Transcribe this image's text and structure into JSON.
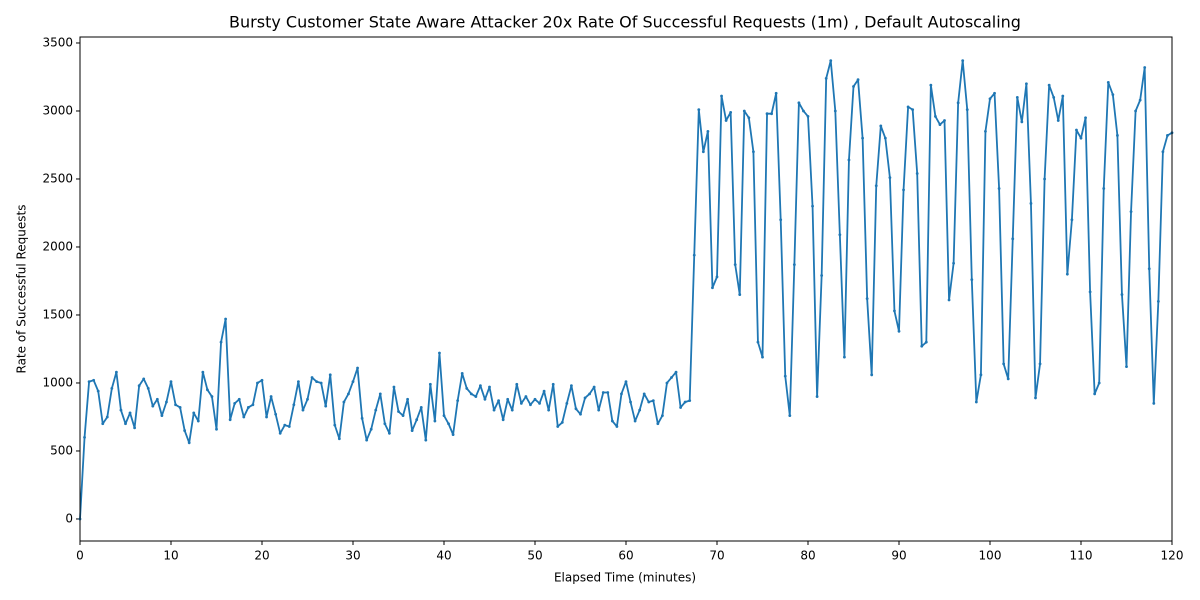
{
  "chart_data": {
    "type": "line",
    "title": "Bursty Customer State Aware Attacker 20x Rate Of Successful Requests (1m) , Default Autoscaling",
    "xlabel": "Elapsed Time (minutes)",
    "ylabel": "Rate of Successful Requests",
    "color": "#1f77b4",
    "markers": true,
    "grid": false,
    "xlim": [
      0,
      120
    ],
    "ylim": [
      -162,
      3544
    ],
    "xticks": [
      0,
      10,
      20,
      30,
      40,
      50,
      60,
      70,
      80,
      90,
      100,
      110,
      120
    ],
    "yticks": [
      0,
      500,
      1000,
      1500,
      2000,
      2500,
      3000,
      3500
    ],
    "x": [
      0,
      0.5,
      1,
      1.5,
      2,
      2.5,
      3,
      3.5,
      4,
      4.5,
      5,
      5.5,
      6,
      6.5,
      7,
      7.5,
      8,
      8.5,
      9,
      9.5,
      10,
      10.5,
      11,
      11.5,
      12,
      12.5,
      13,
      13.5,
      14,
      14.5,
      15,
      15.5,
      16,
      16.5,
      17,
      17.5,
      18,
      18.5,
      19,
      19.5,
      20,
      20.5,
      21,
      21.5,
      22,
      22.5,
      23,
      23.5,
      24,
      24.5,
      25,
      25.5,
      26,
      26.5,
      27,
      27.5,
      28,
      28.5,
      29,
      29.5,
      30,
      30.5,
      31,
      31.5,
      32,
      32.5,
      33,
      33.5,
      34,
      34.5,
      35,
      35.5,
      36,
      36.5,
      37,
      37.5,
      38,
      38.5,
      39,
      39.5,
      40,
      40.5,
      41,
      41.5,
      42,
      42.5,
      43,
      43.5,
      44,
      44.5,
      45,
      45.5,
      46,
      46.5,
      47,
      47.5,
      48,
      48.5,
      49,
      49.5,
      50,
      50.5,
      51,
      51.5,
      52,
      52.5,
      53,
      53.5,
      54,
      54.5,
      55,
      55.5,
      56,
      56.5,
      57,
      57.5,
      58,
      58.5,
      59,
      59.5,
      60,
      60.5,
      61,
      61.5,
      62,
      62.5,
      63,
      63.5,
      64,
      64.5,
      65,
      65.5,
      66,
      66.5,
      67,
      67.5,
      68,
      68.5,
      69,
      69.5,
      70,
      70.5,
      71,
      71.5,
      72,
      72.5,
      73,
      73.5,
      74,
      74.5,
      75,
      75.5,
      76,
      76.5,
      77,
      77.5,
      78,
      78.5,
      79,
      79.5,
      80,
      80.5,
      81,
      81.5,
      82,
      82.5,
      83,
      83.5,
      84,
      84.5,
      85,
      85.5,
      86,
      86.5,
      87,
      87.5,
      88,
      88.5,
      89,
      89.5,
      90,
      90.5,
      91,
      91.5,
      92,
      92.5,
      93,
      93.5,
      94,
      94.5,
      95,
      95.5,
      96,
      96.5,
      97,
      97.5,
      98,
      98.5,
      99,
      99.5,
      100,
      100.5,
      101,
      101.5,
      102,
      102.5,
      103,
      103.5,
      104,
      104.5,
      105,
      105.5,
      106,
      106.5,
      107,
      107.5,
      108,
      108.5,
      109,
      109.5,
      110,
      110.5,
      111,
      111.5,
      112,
      112.5,
      113,
      113.5,
      114,
      114.5,
      115,
      115.5,
      116,
      116.5,
      117,
      117.5,
      118,
      118.5,
      119,
      119.5,
      120
    ],
    "values": [
      0,
      600,
      1010,
      1020,
      940,
      700,
      750,
      960,
      1080,
      800,
      700,
      780,
      670,
      980,
      1030,
      960,
      830,
      880,
      760,
      860,
      1010,
      840,
      820,
      650,
      560,
      780,
      720,
      1080,
      950,
      900,
      660,
      1300,
      1470,
      730,
      850,
      880,
      750,
      820,
      840,
      1000,
      1020,
      750,
      900,
      770,
      630,
      690,
      680,
      840,
      1010,
      800,
      880,
      1040,
      1010,
      1000,
      830,
      1060,
      690,
      590,
      860,
      920,
      1010,
      1110,
      740,
      580,
      660,
      800,
      920,
      700,
      630,
      970,
      790,
      760,
      880,
      650,
      730,
      820,
      580,
      990,
      720,
      1220,
      760,
      700,
      620,
      870,
      1070,
      960,
      920,
      900,
      980,
      880,
      970,
      800,
      870,
      730,
      880,
      800,
      990,
      850,
      900,
      840,
      880,
      850,
      940,
      800,
      990,
      680,
      710,
      850,
      980,
      810,
      770,
      890,
      920,
      970,
      800,
      930,
      930,
      720,
      680,
      920,
      1010,
      860,
      720,
      800,
      920,
      860,
      870,
      700,
      760,
      1000,
      1040,
      1080,
      820,
      860,
      870,
      1940,
      3010,
      2700,
      2850,
      1700,
      1780,
      3110,
      2930,
      2990,
      1870,
      1650,
      3000,
      2950,
      2700,
      1300,
      1190,
      2980,
      2980,
      3130,
      2200,
      1050,
      760,
      1870,
      3060,
      3000,
      2960,
      2300,
      900,
      1790,
      3240,
      3370,
      3000,
      2090,
      1190,
      2640,
      3180,
      3230,
      2800,
      1620,
      1060,
      2450,
      2890,
      2800,
      2510,
      1530,
      1380,
      2420,
      3030,
      3010,
      2540,
      1270,
      1300,
      3190,
      2960,
      2900,
      2930,
      1610,
      1880,
      3060,
      3370,
      3010,
      1760,
      860,
      1060,
      2850,
      3090,
      3130,
      2430,
      1140,
      1030,
      2060,
      3100,
      2920,
      3200,
      2320,
      890,
      1140,
      2500,
      3190,
      3100,
      2930,
      3110,
      1800,
      2200,
      2860,
      2800,
      2950,
      1670,
      920,
      1000,
      2430,
      3210,
      3120,
      2820,
      1650,
      1120,
      2260,
      3000,
      3080,
      3320,
      1840,
      850,
      1600,
      2700,
      2820,
      2840
    ]
  }
}
